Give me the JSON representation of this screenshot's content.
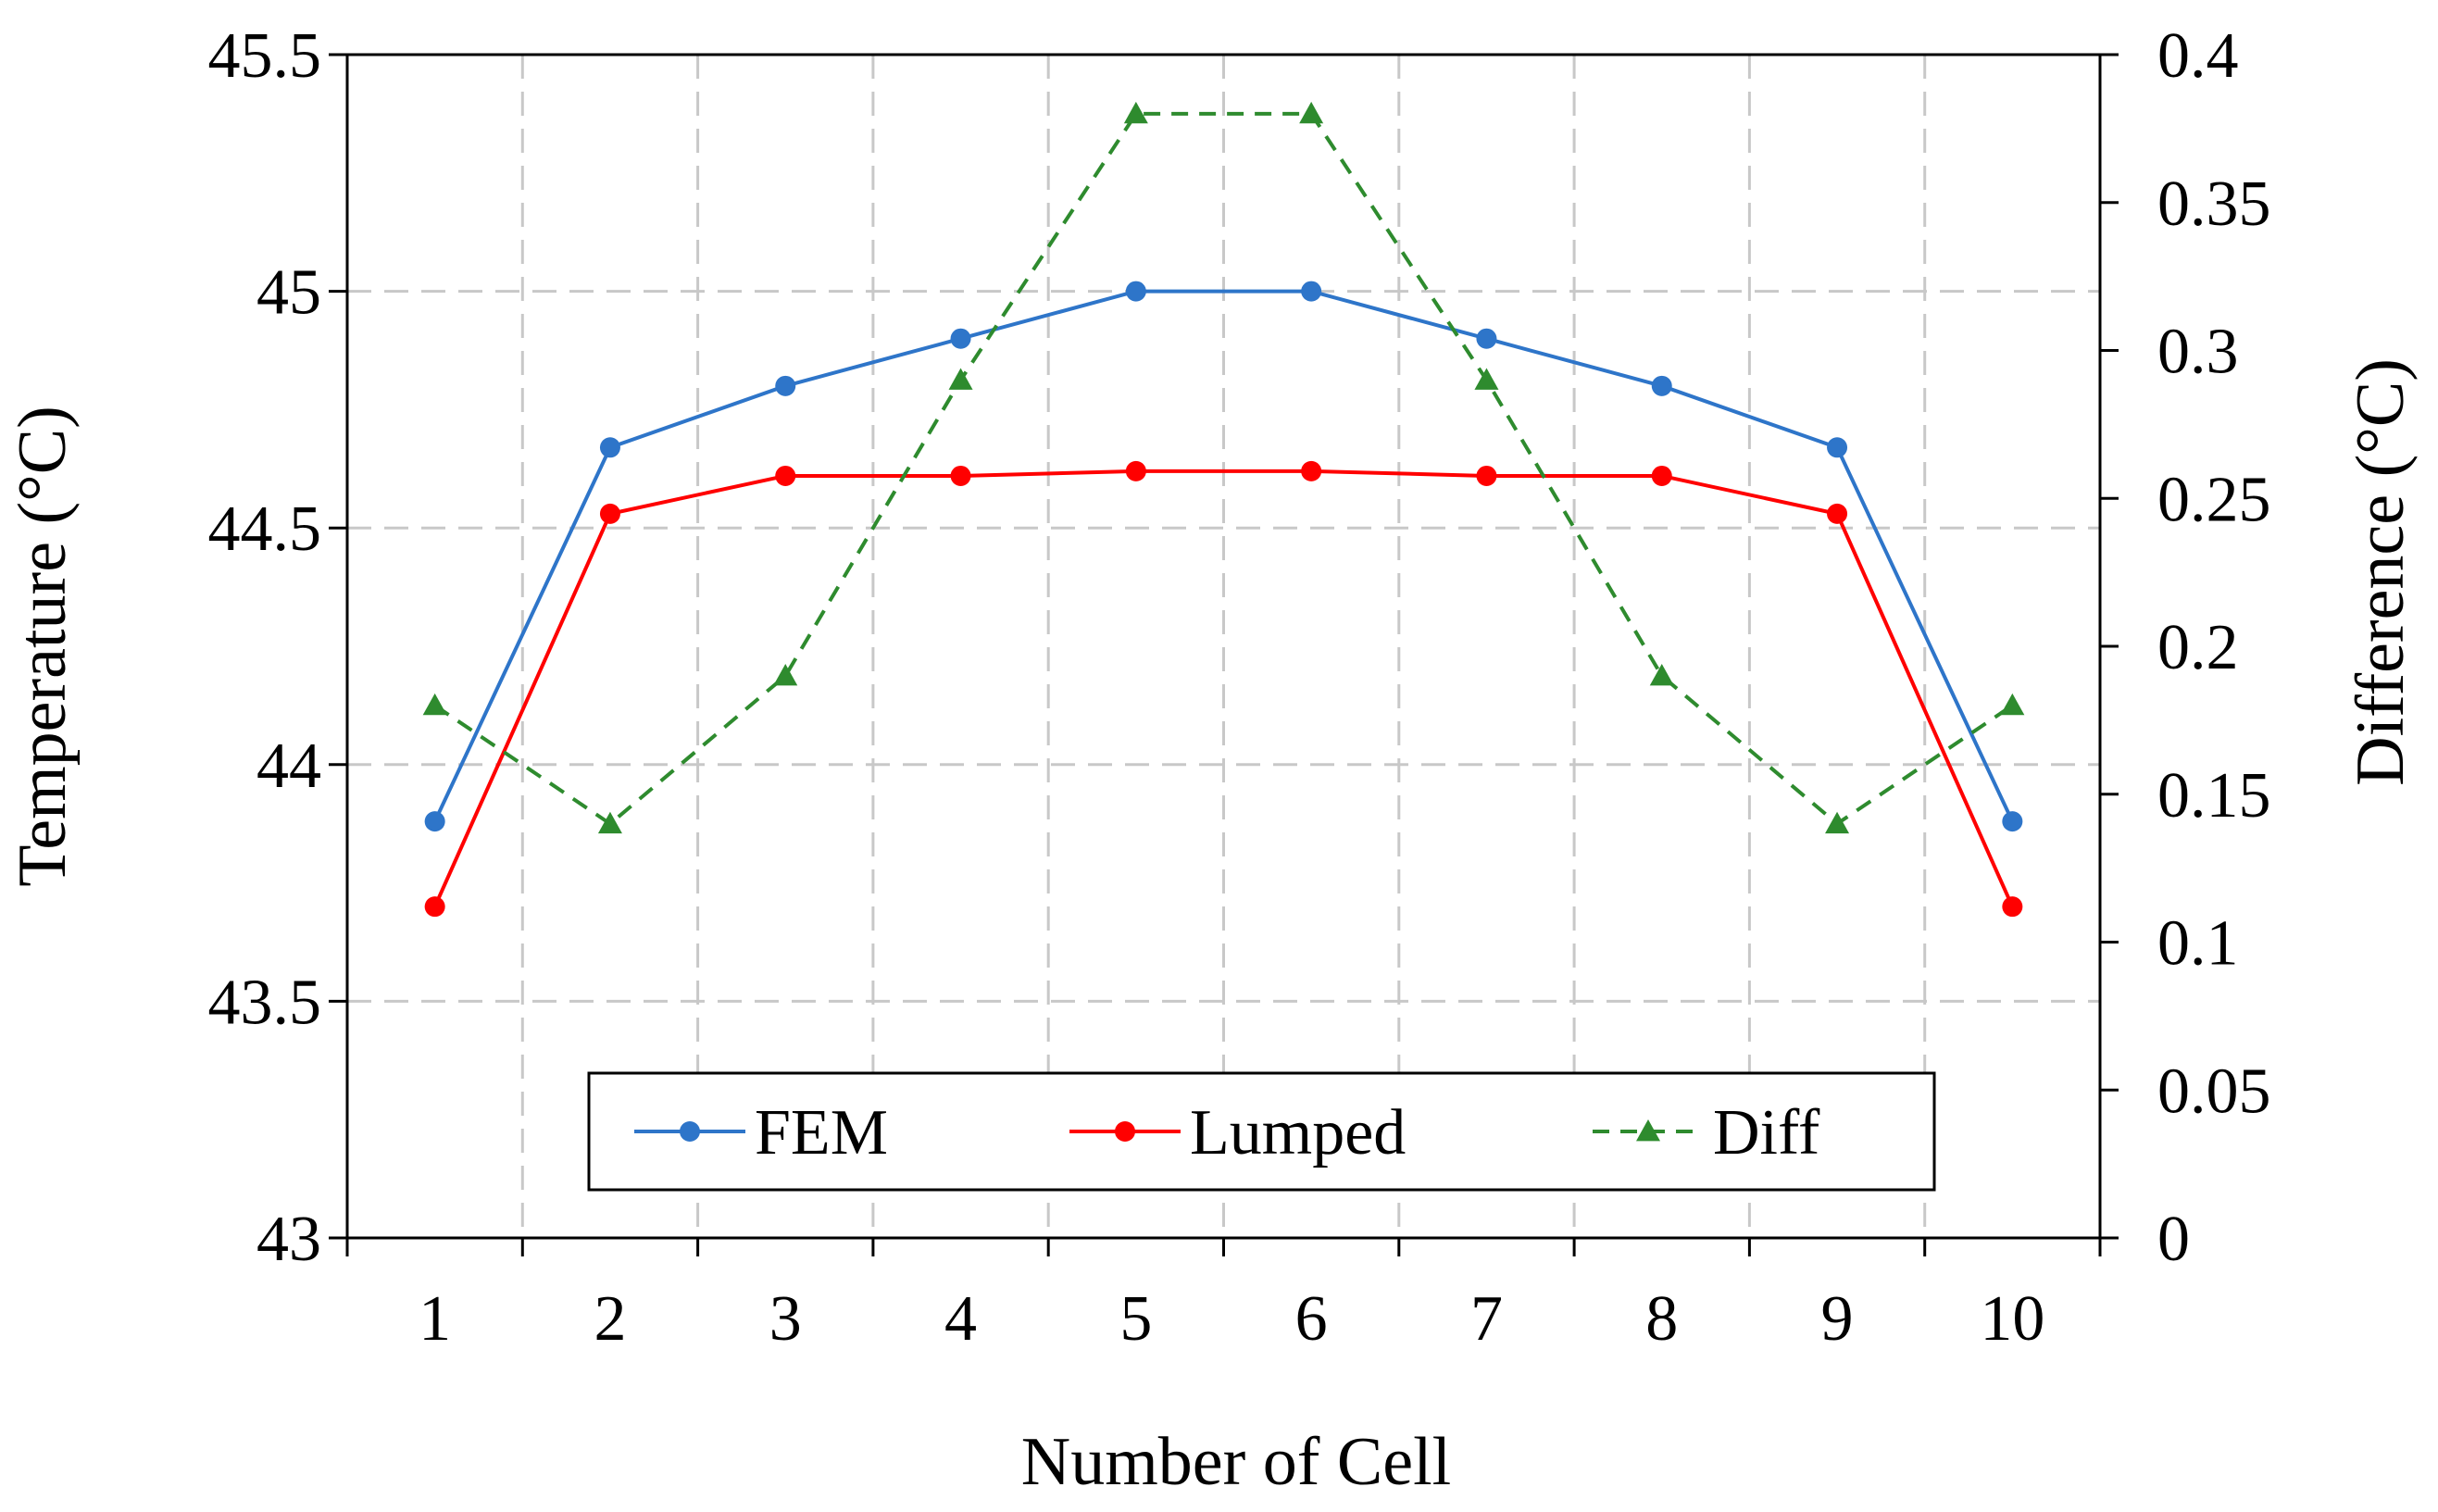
{
  "chart_data": {
    "type": "line",
    "title": "",
    "xlabel": "Number of Cell",
    "ylabel": "Temperature (°C)",
    "y2label": "Difference (°C)",
    "categories": [
      "1",
      "2",
      "3",
      "4",
      "5",
      "6",
      "7",
      "8",
      "9",
      "10"
    ],
    "ylim": [
      43,
      45.5
    ],
    "yticks": [
      "43",
      "43.5",
      "44",
      "44.5",
      "45",
      "45.5"
    ],
    "y2lim": [
      0,
      0.4
    ],
    "y2ticks": [
      "0",
      "0.05",
      "0.1",
      "0.15",
      "0.2",
      "0.25",
      "0.3",
      "0.35",
      "0.4"
    ],
    "grid": true,
    "legend_position": "bottom-center",
    "series": [
      {
        "name": "FEM",
        "axis": "left",
        "color": "#2E75C9",
        "marker": "circle",
        "dash": "solid",
        "values": [
          43.88,
          44.67,
          44.8,
          44.9,
          45.0,
          45.0,
          44.9,
          44.8,
          44.67,
          43.88
        ]
      },
      {
        "name": "Lumped",
        "axis": "left",
        "color": "#FF0000",
        "marker": "circle",
        "dash": "solid",
        "values": [
          43.7,
          44.53,
          44.61,
          44.61,
          44.62,
          44.62,
          44.61,
          44.61,
          44.53,
          43.7
        ]
      },
      {
        "name": "Diff",
        "axis": "right",
        "color": "#2E8B2E",
        "marker": "triangle",
        "dash": "dashed",
        "values": [
          0.18,
          0.14,
          0.19,
          0.29,
          0.38,
          0.38,
          0.29,
          0.19,
          0.14,
          0.18
        ]
      }
    ]
  }
}
